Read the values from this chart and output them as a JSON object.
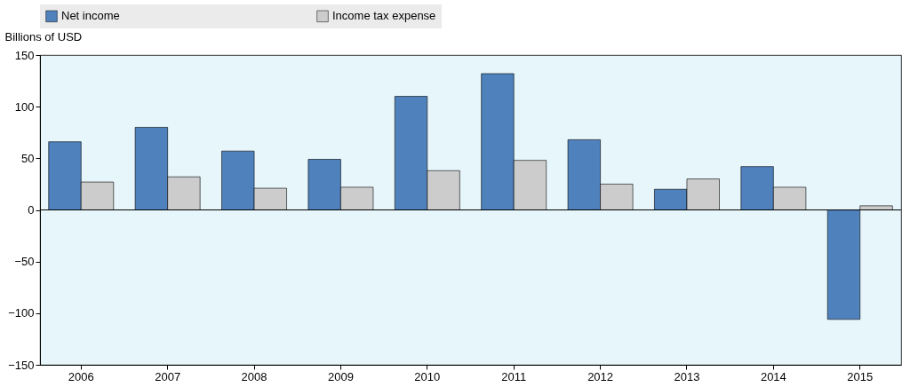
{
  "chart_data": {
    "type": "bar",
    "ylabel": "Billions of USD",
    "categories": [
      "2006",
      "2007",
      "2008",
      "2009",
      "2010",
      "2011",
      "2012",
      "2013",
      "2014",
      "2015"
    ],
    "series": [
      {
        "name": "Net income",
        "color": "#4f81bd",
        "values": [
          66,
          80,
          57,
          49,
          110,
          132,
          68,
          20,
          42,
          -106
        ]
      },
      {
        "name": "Income tax expense",
        "color": "#cccccc",
        "values": [
          27,
          32,
          21,
          22,
          38,
          48,
          25,
          30,
          22,
          4
        ]
      }
    ],
    "ylim": [
      -150,
      150
    ],
    "yticks": [
      -150,
      -100,
      -50,
      0,
      50,
      100,
      150
    ],
    "ref_lines": [
      {
        "axis": "y",
        "value": 0
      }
    ],
    "grid": false,
    "legend": "top"
  }
}
